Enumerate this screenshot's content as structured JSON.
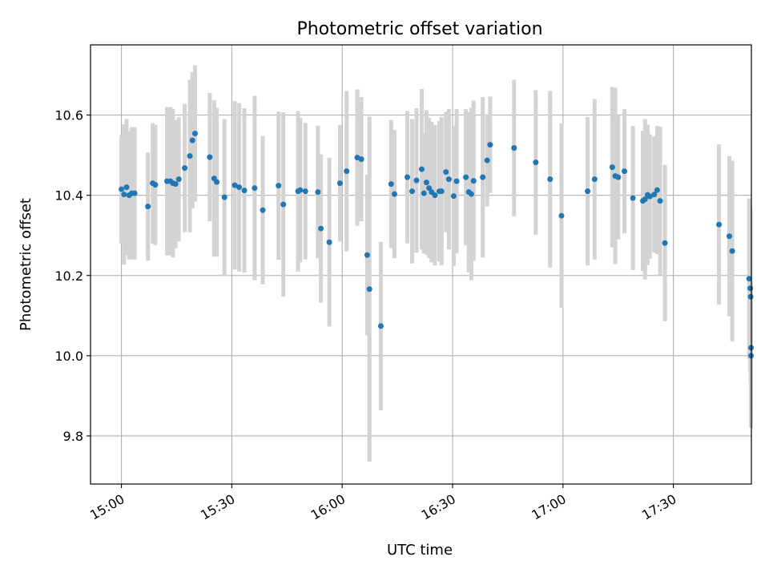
{
  "chart_data": {
    "type": "scatter",
    "title": "Photometric offset variation",
    "xlabel": "UTC time",
    "ylabel": "Photometric offset",
    "x_ticks": [
      "15:00",
      "15:30",
      "16:00",
      "16:30",
      "17:00",
      "17:30"
    ],
    "x_tick_minutes": [
      0,
      30,
      60,
      90,
      120,
      150
    ],
    "xlim_minutes": [
      -8.4,
      171.2
    ],
    "y_ticks": [
      "9.8",
      "10.0",
      "10.2",
      "10.4",
      "10.6"
    ],
    "y_tick_values": [
      9.8,
      10.0,
      10.2,
      10.4,
      10.6
    ],
    "ylim": [
      9.68,
      10.775
    ],
    "grid": true,
    "point_color": "#1f77b4",
    "errorbar_color": "#d3d3d3",
    "series": [
      {
        "x": [
          0.0,
          0.7,
          1.4,
          2.1,
          2.8,
          3.6,
          7.2,
          8.5,
          9.2,
          12.4,
          13.3,
          14.0,
          14.7,
          15.6,
          17.2,
          18.6,
          19.3,
          20.0,
          24.0,
          25.2,
          25.9,
          28.0,
          30.8,
          32.0,
          33.4,
          36.2,
          38.4,
          42.7,
          44.0,
          48.0,
          48.6,
          50.0,
          53.4,
          54.2,
          56.5,
          59.4,
          61.2,
          64.1,
          65.2,
          66.8,
          67.4,
          70.5,
          73.3,
          74.2,
          77.7,
          79.0,
          80.2,
          81.6,
          82.2,
          82.9,
          83.6,
          84.3,
          85.2,
          86.4,
          87.0,
          88.2,
          89.0,
          90.3,
          91.1,
          93.6,
          94.4,
          95.1,
          95.7,
          98.2,
          99.4,
          100.2,
          106.7,
          112.6,
          116.5,
          119.6,
          126.7,
          128.6,
          133.4,
          134.2,
          135.0,
          136.7,
          139.0,
          141.7,
          142.3,
          143.0,
          143.6,
          144.8,
          145.6,
          146.4,
          147.7,
          162.4,
          165.2,
          166.0,
          170.6,
          170.9,
          171.0,
          171.1,
          171.1
        ],
        "y": [
          10.415,
          10.402,
          10.42,
          10.4,
          10.405,
          10.405,
          10.372,
          10.43,
          10.426,
          10.435,
          10.435,
          10.43,
          10.428,
          10.44,
          10.468,
          10.498,
          10.537,
          10.554,
          10.495,
          10.442,
          10.433,
          10.395,
          10.425,
          10.42,
          10.412,
          10.418,
          10.363,
          10.424,
          10.377,
          10.41,
          10.413,
          10.41,
          10.408,
          10.317,
          10.283,
          10.43,
          10.46,
          10.494,
          10.49,
          10.251,
          10.166,
          10.074,
          10.428,
          10.403,
          10.445,
          10.41,
          10.437,
          10.465,
          10.405,
          10.432,
          10.418,
          10.408,
          10.4,
          10.41,
          10.41,
          10.458,
          10.44,
          10.398,
          10.435,
          10.445,
          10.408,
          10.403,
          10.436,
          10.445,
          10.487,
          10.526,
          10.518,
          10.482,
          10.44,
          10.349,
          10.41,
          10.44,
          10.47,
          10.448,
          10.445,
          10.46,
          10.393,
          10.386,
          10.39,
          10.401,
          10.397,
          10.402,
          10.413,
          10.386,
          10.281,
          10.327,
          10.298,
          10.261,
          10.192,
          10.168,
          10.147,
          10.02,
          10.0
        ],
        "err": [
          0.135,
          0.175,
          0.17,
          0.16,
          0.165,
          0.165,
          0.135,
          0.15,
          0.15,
          0.185,
          0.185,
          0.185,
          0.16,
          0.155,
          0.16,
          0.19,
          0.17,
          0.17,
          0.16,
          0.195,
          0.185,
          0.195,
          0.21,
          0.21,
          0.205,
          0.23,
          0.185,
          0.185,
          0.23,
          0.2,
          0.18,
          0.17,
          0.165,
          0.185,
          0.21,
          0.145,
          0.2,
          0.17,
          0.155,
          0.2,
          0.43,
          0.21,
          0.16,
          0.16,
          0.165,
          0.18,
          0.18,
          0.2,
          0.15,
          0.18,
          0.175,
          0.175,
          0.175,
          0.175,
          0.185,
          0.15,
          0.175,
          0.175,
          0.18,
          0.17,
          0.2,
          0.215,
          0.2,
          0.2,
          0.115,
          0.12,
          0.17,
          0.18,
          0.22,
          0.23,
          0.185,
          0.2,
          0.2,
          0.22,
          0.155,
          0.155,
          0.18,
          0.175,
          0.2,
          0.175,
          0.155,
          0.145,
          0.16,
          0.185,
          0.195,
          0.2,
          0.2,
          0.225,
          0.2,
          0.205,
          0.215,
          0.165,
          0.18
        ]
      }
    ]
  }
}
